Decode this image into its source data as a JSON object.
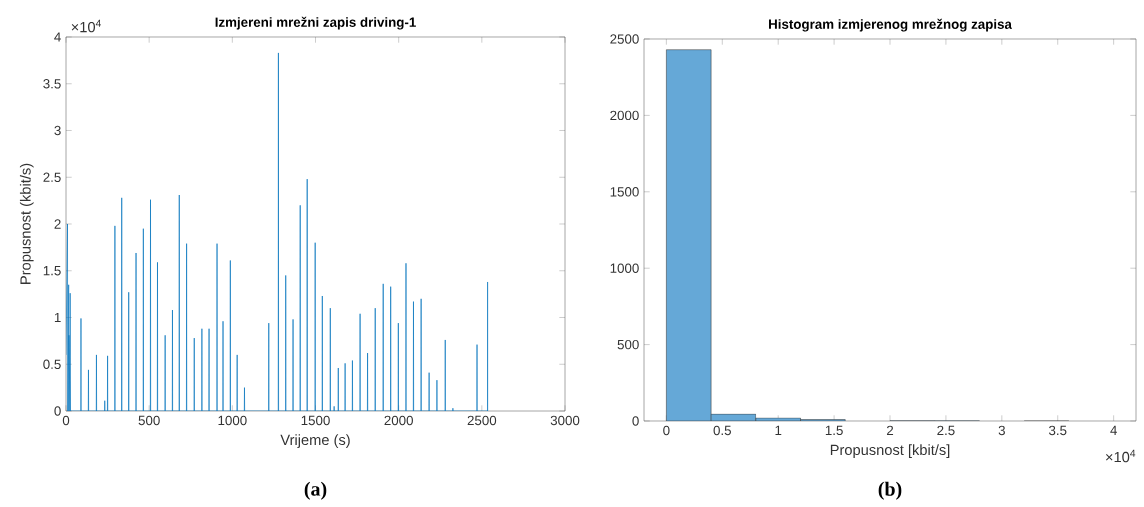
{
  "chart_data": [
    {
      "type": "line",
      "title": "Izmjereni mrežni zapis driving-1",
      "xlabel": "Vrijeme (s)",
      "ylabel": "Propusnost (kbit/s)",
      "x": [
        0,
        9,
        10,
        11,
        16,
        17,
        18,
        24,
        25,
        26,
        28,
        29,
        30,
        60,
        89,
        90,
        91,
        134,
        135,
        136,
        182,
        183,
        184,
        232,
        233,
        234,
        249,
        250,
        251,
        293,
        294,
        295,
        334,
        335,
        336,
        376,
        377,
        378,
        420,
        421,
        422,
        464,
        465,
        466,
        507,
        508,
        509,
        549,
        550,
        551,
        595,
        596,
        597,
        639,
        640,
        641,
        680,
        681,
        682,
        724,
        725,
        726,
        770,
        771,
        772,
        816,
        817,
        818,
        859,
        860,
        861,
        907,
        908,
        909,
        943,
        944,
        945,
        987,
        988,
        989,
        1028,
        1029,
        1030,
        1072,
        1073,
        1074,
        1218,
        1219,
        1220,
        1276,
        1277,
        1278,
        1320,
        1321,
        1322,
        1364,
        1365,
        1366,
        1407,
        1408,
        1409,
        1449,
        1450,
        1451,
        1497,
        1498,
        1499,
        1540,
        1541,
        1542,
        1588,
        1589,
        1590,
        1611,
        1612,
        1613,
        1636,
        1637,
        1638,
        1677,
        1678,
        1679,
        1721,
        1722,
        1723,
        1767,
        1768,
        1769,
        1812,
        1813,
        1814,
        1858,
        1859,
        1860,
        1906,
        1907,
        1908,
        1951,
        1952,
        1953,
        1997,
        1998,
        1999,
        2043,
        2044,
        2045,
        2088,
        2089,
        2090,
        2134,
        2135,
        2136,
        2182,
        2183,
        2184,
        2229,
        2230,
        2231,
        2279,
        2280,
        2281,
        2325,
        2326,
        2327,
        2470,
        2471,
        2472,
        2534,
        2535,
        2536
      ],
      "values": [
        0.6,
        2.0,
        0,
        0,
        1.35,
        0,
        0.81,
        0,
        1.26,
        0,
        0,
        0,
        0,
        0,
        0,
        0.99,
        0,
        0,
        0.44,
        0,
        0,
        0.6,
        0,
        0,
        0.11,
        0,
        0,
        0.59,
        0,
        0,
        1.98,
        0,
        0,
        2.28,
        0,
        0,
        1.27,
        0,
        0,
        1.69,
        0,
        0,
        1.95,
        0,
        0,
        2.26,
        0,
        0,
        1.59,
        0,
        0,
        0.81,
        0,
        0,
        1.08,
        0,
        0,
        2.31,
        0,
        0,
        1.79,
        0,
        0,
        0.78,
        0,
        0,
        0.88,
        0,
        0,
        0.88,
        0,
        0,
        1.79,
        0,
        0,
        0.96,
        0,
        0,
        1.61,
        0,
        0,
        0.6,
        0,
        0,
        0.25,
        0,
        0,
        0.94,
        0,
        0,
        3.83,
        0,
        0,
        1.45,
        0,
        0,
        0.98,
        0,
        0,
        2.2,
        0,
        0,
        2.48,
        0,
        0,
        1.8,
        0,
        0,
        1.23,
        0,
        0,
        1.1,
        0,
        0,
        0.05,
        0,
        0,
        0.46,
        0,
        0,
        0.51,
        0,
        0,
        0.54,
        0,
        0,
        1.04,
        0,
        0,
        0.62,
        0,
        0,
        1.1,
        0,
        0,
        1.36,
        0,
        0,
        1.33,
        0,
        0,
        0.94,
        0,
        0,
        1.58,
        0,
        0,
        1.17,
        0,
        0,
        1.2,
        0,
        0,
        0.41,
        0,
        0,
        0.33,
        0,
        0,
        0.76,
        0,
        0,
        0.03,
        0,
        0,
        0.71,
        0,
        0,
        1.38,
        0
      ],
      "color": "#0072bd",
      "xlim": [
        0,
        3000
      ],
      "ylim": [
        0,
        4
      ],
      "xticks": [
        0,
        500,
        1000,
        1500,
        2000,
        2500,
        3000
      ],
      "yticks": [
        0,
        0.5,
        1,
        1.5,
        2,
        2.5,
        3,
        3.5,
        4
      ],
      "annotations": [
        "×10$^{4}$",
        "(a)"
      ]
    },
    {
      "type": "histogram",
      "title": "Histogram izmjerenog mrežnog zapisa",
      "xlabel": "Propusnost [kbit/s]",
      "bins": [
        0,
        0.4,
        0.8,
        1.2,
        1.6,
        2.0,
        2.4,
        2.8,
        3.2,
        3.6,
        4.0
      ],
      "values": [
        2430,
        45,
        20,
        10,
        null,
        2,
        1,
        null,
        0,
        null
      ],
      "color": "#65a8d7",
      "xlim": [
        -0.2,
        4.2
      ],
      "ylim": [
        0,
        2500
      ],
      "xticks": [
        0,
        0.5,
        1,
        1.5,
        2,
        2.5,
        3,
        3.5,
        4
      ],
      "yticks": [
        0,
        500,
        1000,
        1500,
        2000,
        2500
      ],
      "annotations": [
        "×10$^{4}$",
        "(b)"
      ]
    }
  ]
}
